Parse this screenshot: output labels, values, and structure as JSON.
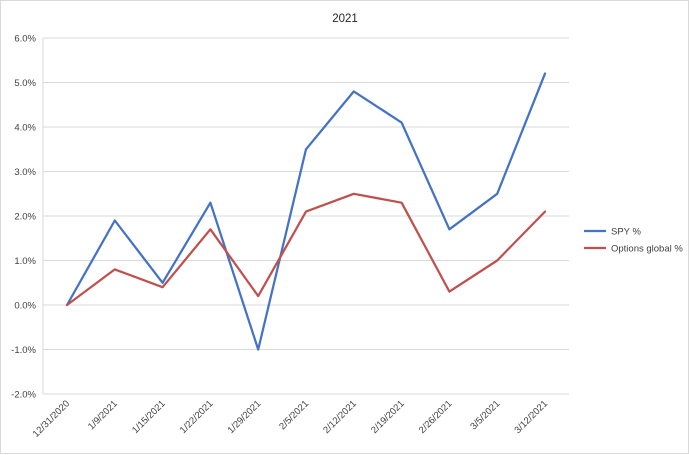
{
  "chart_data": {
    "type": "line",
    "title": "2021",
    "xlabel": "",
    "ylabel": "",
    "categories": [
      "12/31/2020",
      "1/9/2021",
      "1/15/2021",
      "1/22/2021",
      "1/29/2021",
      "2/5/2021",
      "2/12/2021",
      "2/19/2021",
      "2/26/2021",
      "3/5/2021",
      "3/12/2021"
    ],
    "ylim": [
      -2.0,
      6.0
    ],
    "yticks": [
      "-2.0%",
      "-1.0%",
      "0.0%",
      "1.0%",
      "2.0%",
      "3.0%",
      "4.0%",
      "5.0%",
      "6.0%"
    ],
    "grid": true,
    "legend_position": "right",
    "series": [
      {
        "name": "SPY %",
        "color": "#4472c4",
        "values": [
          0.0,
          1.9,
          0.5,
          2.3,
          -1.0,
          3.5,
          4.8,
          4.1,
          1.7,
          2.5,
          5.2
        ]
      },
      {
        "name": "Options global %",
        "color": "#c0504d",
        "values": [
          0.0,
          0.8,
          0.4,
          1.7,
          0.2,
          2.1,
          2.5,
          2.3,
          0.3,
          1.0,
          2.1
        ]
      }
    ]
  }
}
